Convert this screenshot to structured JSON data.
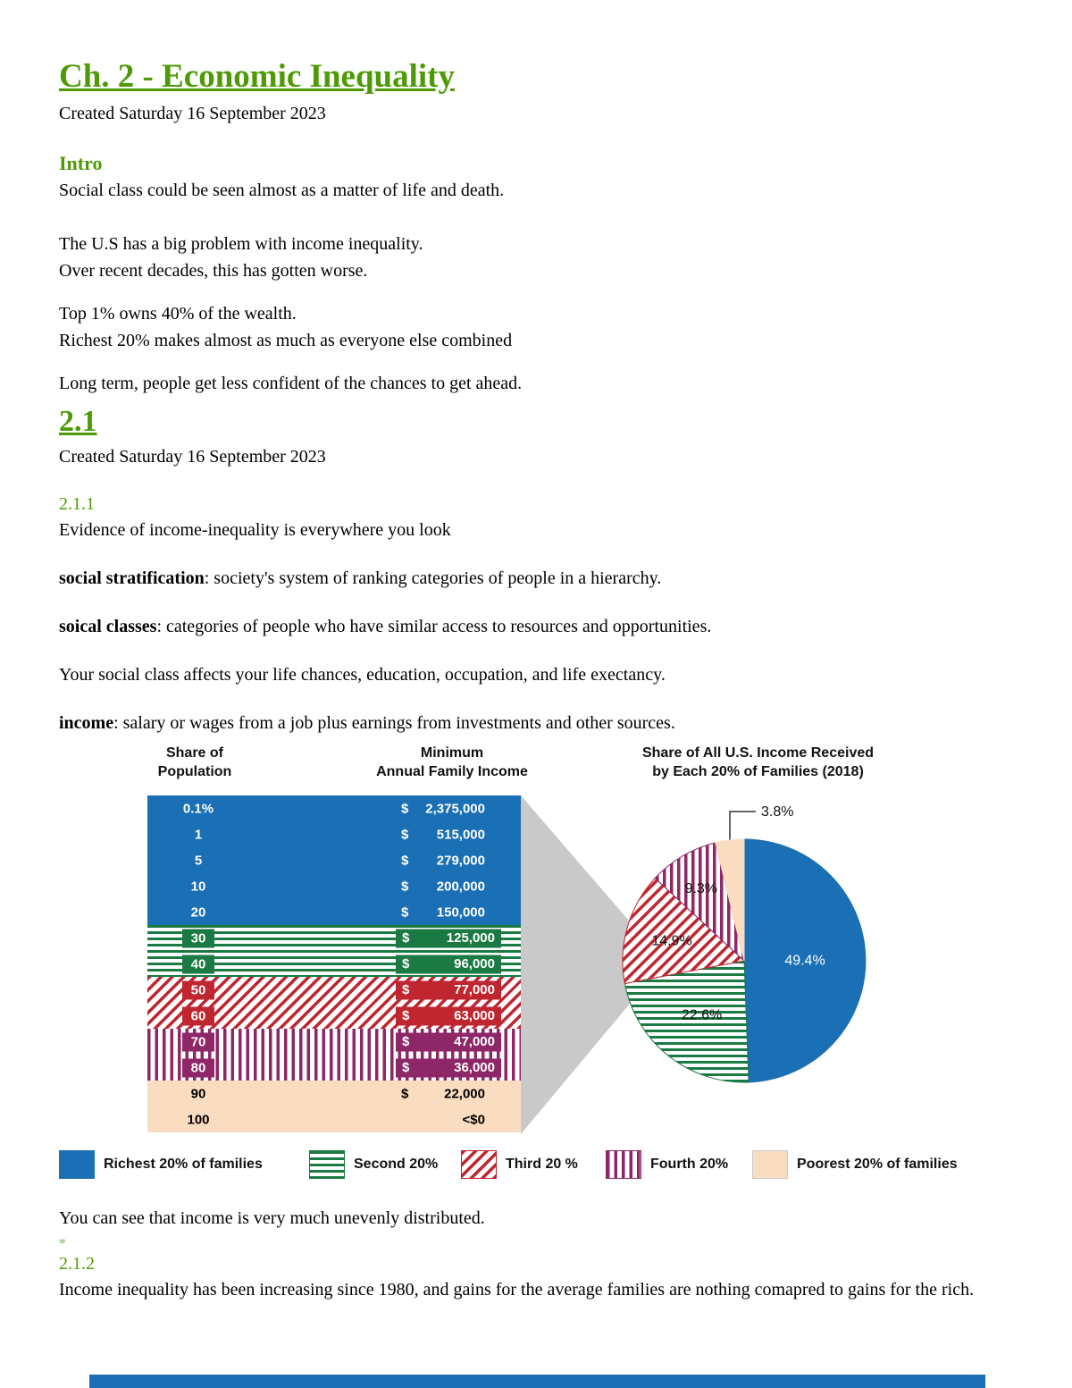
{
  "doc": {
    "title": "Ch. 2 - Economic Inequality",
    "created": "Created Saturday 16 September 2023"
  },
  "intro": {
    "heading": "Intro",
    "p1": "Social class could be seen almost as a matter of life and death.",
    "p2l1": "The U.S has a big problem with income inequality.",
    "p2l2": "Over recent decades, this has gotten worse.",
    "p3l1": "Top 1% owns 40% of the wealth.",
    "p3l2": "Richest 20% makes almost as much as everyone else combined",
    "p4": "Long term, people get less confident of the chances to get ahead."
  },
  "section21": {
    "heading": "2.1",
    "created": "Created Saturday 16 September 2023",
    "sub211": {
      "heading": "2.1.1",
      "p1": "Evidence of income-inequality is everywhere you look",
      "def1_term": "social stratification",
      "def1_rest": ": society's system of ranking categories of people in a hierarchy.",
      "def2_term": "soical classes",
      "def2_rest": ": categories of people who have similar access to resources and opportunities.",
      "p2": "Your social class affects your life chances, education, occupation, and life exectancy.",
      "def3_term": "income",
      "def3_rest": ": salary or wages from a job plus earnings from investments and other sources."
    },
    "after_figure": "You can see that income is very much unevenly distributed.",
    "equals_mark": "=",
    "sub212": {
      "heading": "2.1.2",
      "p1": "Income inequality has been increasing since 1980, and gains for the average families are nothing comapred to gains for the rich."
    }
  },
  "chart_data": [
    {
      "type": "table",
      "headers": [
        [
          "Share of",
          "Population"
        ],
        [
          "Minimum",
          "Annual Family Income"
        ]
      ],
      "groups": [
        {
          "name": "Richest 20% of families",
          "color": "#1a6fb5",
          "pattern": "solid",
          "rows": [
            {
              "pop": "0.1%",
              "cur": "$",
              "amount": "2,375,000"
            },
            {
              "pop": "1",
              "cur": "$",
              "amount": "515,000"
            },
            {
              "pop": "5",
              "cur": "$",
              "amount": "279,000"
            },
            {
              "pop": "10",
              "cur": "$",
              "amount": "200,000"
            },
            {
              "pop": "20",
              "cur": "$",
              "amount": "150,000"
            }
          ]
        },
        {
          "name": "Second 20%",
          "color": "#1b7a43",
          "pattern": "horizontal-stripes",
          "rows": [
            {
              "pop": "30",
              "cur": "$",
              "amount": "125,000"
            },
            {
              "pop": "40",
              "cur": "$",
              "amount": "96,000"
            }
          ]
        },
        {
          "name": "Third 20 %",
          "color": "#bf2630",
          "pattern": "diagonal-stripes",
          "rows": [
            {
              "pop": "50",
              "cur": "$",
              "amount": "77,000"
            },
            {
              "pop": "60",
              "cur": "$",
              "amount": "63,000"
            }
          ]
        },
        {
          "name": "Fourth 20%",
          "color": "#8d2767",
          "pattern": "vertical-stripes",
          "rows": [
            {
              "pop": "70",
              "cur": "$",
              "amount": "47,000"
            },
            {
              "pop": "80",
              "cur": "$",
              "amount": "36,000"
            }
          ]
        },
        {
          "name": "Poorest 20% of families",
          "color": "#fadcc0",
          "pattern": "solid",
          "rows": [
            {
              "pop": "90",
              "cur": "$",
              "amount": "22,000"
            },
            {
              "pop": "100",
              "cur": "",
              "amount": "<$0"
            }
          ]
        }
      ]
    },
    {
      "type": "pie",
      "title_line1": "Share of All U.S. Income Received",
      "title_line2": "by Each 20% of Families (2018)",
      "labels": [
        "Richest 20% of families",
        "Second 20%",
        "Third 20 %",
        "Fourth 20%",
        "Poorest 20% of families"
      ],
      "values": [
        49.4,
        22.6,
        14.9,
        9.3,
        3.8
      ],
      "colors": [
        "#1a6fb5",
        "#1b7a43",
        "#bf2630",
        "#8d2767",
        "#fadcc0"
      ],
      "patterns": [
        "solid",
        "horizontal-stripes",
        "diagonal-stripes",
        "vertical-stripes",
        "solid"
      ],
      "callout_label": "3.8%",
      "legend_position": "bottom"
    }
  ]
}
